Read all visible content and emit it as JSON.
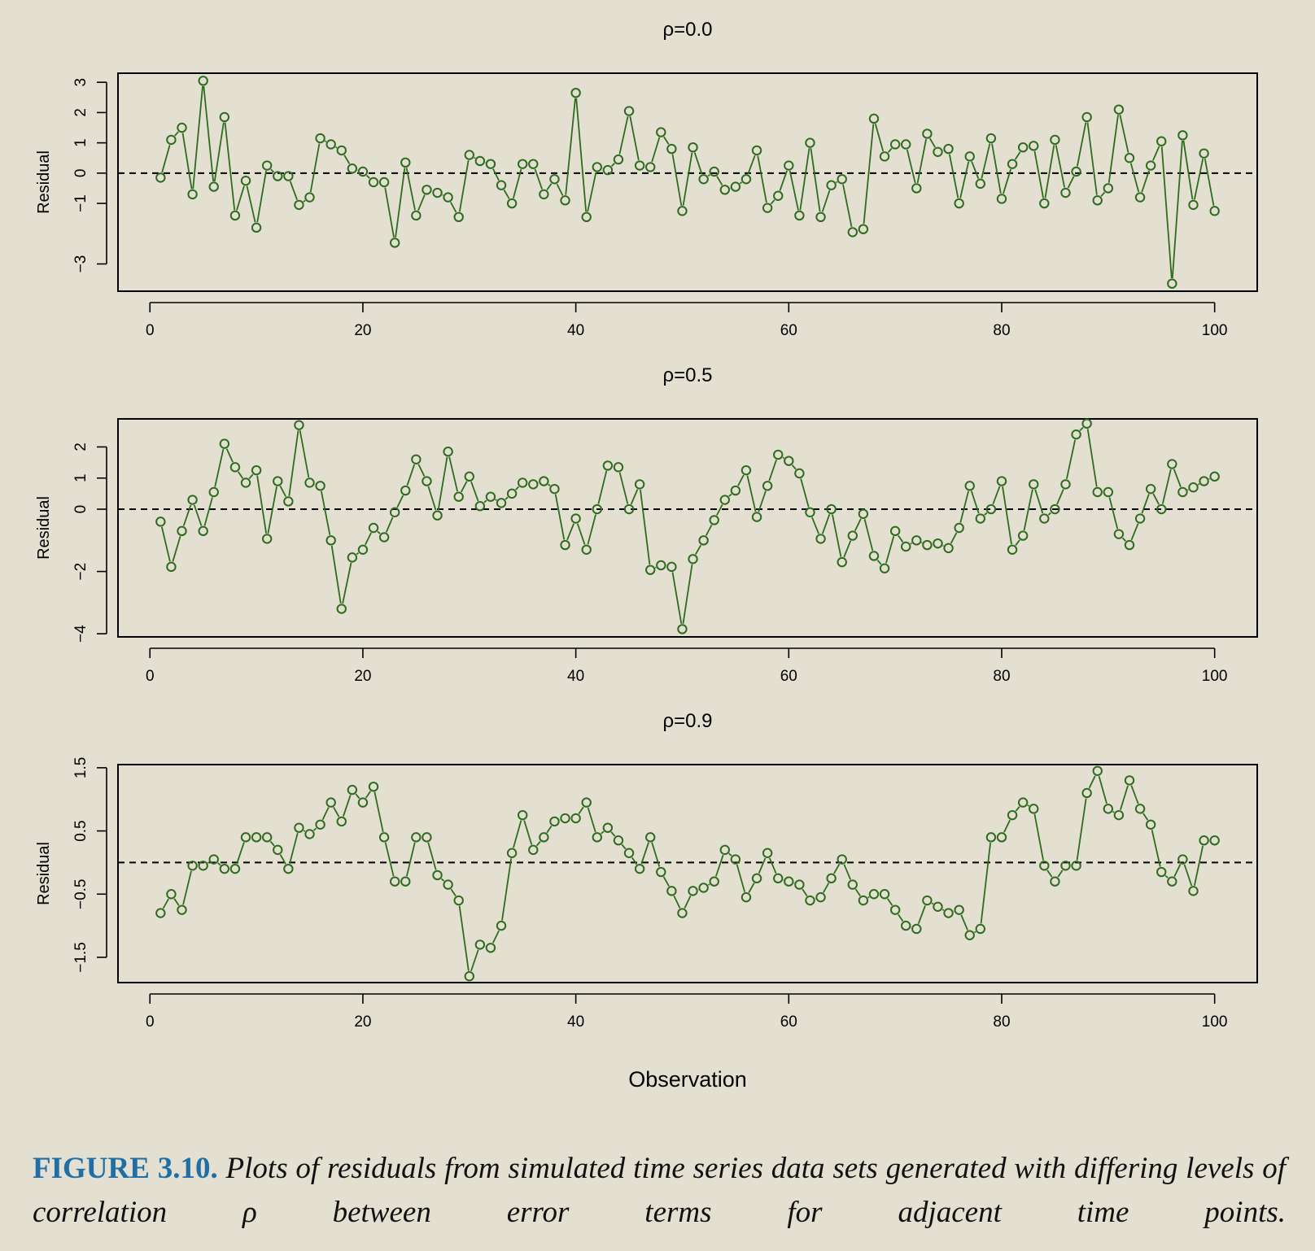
{
  "figure": {
    "xlabel": "Observation",
    "line_color": "#2f6b1f",
    "caption_label": "FIGURE 3.10.",
    "caption_text": "Plots of residuals from simulated time series data sets generated with differing levels of correlation ρ between error terms for adjacent time points.",
    "caption_label_color": "#1f6fa6"
  },
  "chart_data": [
    {
      "type": "line",
      "title": "ρ=0.0",
      "xlabel": "",
      "ylabel": "Residual",
      "xlim": [
        -3,
        104
      ],
      "ylim": [
        -3.9,
        3.3
      ],
      "xticks": [
        0,
        20,
        40,
        60,
        80,
        100
      ],
      "yticks": [
        -3,
        -1,
        0,
        1,
        2,
        3
      ],
      "yticklabels": [
        "−3",
        "−1",
        "0",
        "1",
        "2",
        "3"
      ],
      "hline": 0,
      "x": [
        1,
        2,
        3,
        4,
        5,
        6,
        7,
        8,
        9,
        10,
        11,
        12,
        13,
        14,
        15,
        16,
        17,
        18,
        19,
        20,
        21,
        22,
        23,
        24,
        25,
        26,
        27,
        28,
        29,
        30,
        31,
        32,
        33,
        34,
        35,
        36,
        37,
        38,
        39,
        40,
        41,
        42,
        43,
        44,
        45,
        46,
        47,
        48,
        49,
        50,
        51,
        52,
        53,
        54,
        55,
        56,
        57,
        58,
        59,
        60,
        61,
        62,
        63,
        64,
        65,
        66,
        67,
        68,
        69,
        70,
        71,
        72,
        73,
        74,
        75,
        76,
        77,
        78,
        79,
        80,
        81,
        82,
        83,
        84,
        85,
        86,
        87,
        88,
        89,
        90,
        91,
        92,
        93,
        94,
        95,
        96,
        97,
        98,
        99,
        100
      ],
      "series": [
        {
          "values": [
            -0.15,
            1.1,
            1.5,
            -0.7,
            3.05,
            -0.45,
            1.85,
            -1.4,
            -0.25,
            -1.8,
            0.25,
            -0.1,
            -0.1,
            -1.05,
            -0.8,
            1.15,
            0.95,
            0.75,
            0.15,
            0.05,
            -0.3,
            -0.3,
            -2.3,
            0.35,
            -1.4,
            -0.55,
            -0.65,
            -0.8,
            -1.45,
            0.6,
            0.4,
            0.3,
            -0.4,
            -1.0,
            0.3,
            0.3,
            -0.7,
            -0.2,
            -0.9,
            2.65,
            -1.45,
            0.2,
            0.1,
            0.45,
            2.05,
            0.25,
            0.2,
            1.35,
            0.8,
            -1.25,
            0.85,
            -0.2,
            0.05,
            -0.55,
            -0.45,
            -0.2,
            0.75,
            -1.15,
            -0.75,
            0.25,
            -1.4,
            1.0,
            -1.45,
            -0.4,
            -0.2,
            -1.95,
            -1.85,
            1.8,
            0.55,
            0.95,
            0.95,
            -0.5,
            1.3,
            0.7,
            0.8,
            -1.0,
            0.55,
            -0.35,
            1.15,
            -0.85,
            0.3,
            0.85,
            0.9,
            -1.0,
            1.1,
            -0.65,
            0.05,
            1.85,
            -0.9,
            -0.5,
            2.1,
            0.5,
            -0.8,
            0.25,
            1.05,
            -3.65,
            1.25,
            -1.05,
            0.65,
            -1.25
          ]
        }
      ]
    },
    {
      "type": "line",
      "title": "ρ=0.5",
      "xlabel": "",
      "ylabel": "Residual",
      "xlim": [
        -3,
        104
      ],
      "ylim": [
        -4.1,
        2.9
      ],
      "xticks": [
        0,
        20,
        40,
        60,
        80,
        100
      ],
      "yticks": [
        -4,
        -2,
        0,
        1,
        2
      ],
      "yticklabels": [
        "−4",
        "−2",
        "0",
        "1",
        "2"
      ],
      "hline": 0,
      "x": [
        1,
        2,
        3,
        4,
        5,
        6,
        7,
        8,
        9,
        10,
        11,
        12,
        13,
        14,
        15,
        16,
        17,
        18,
        19,
        20,
        21,
        22,
        23,
        24,
        25,
        26,
        27,
        28,
        29,
        30,
        31,
        32,
        33,
        34,
        35,
        36,
        37,
        38,
        39,
        40,
        41,
        42,
        43,
        44,
        45,
        46,
        47,
        48,
        49,
        50,
        51,
        52,
        53,
        54,
        55,
        56,
        57,
        58,
        59,
        60,
        61,
        62,
        63,
        64,
        65,
        66,
        67,
        68,
        69,
        70,
        71,
        72,
        73,
        74,
        75,
        76,
        77,
        78,
        79,
        80,
        81,
        82,
        83,
        84,
        85,
        86,
        87,
        88,
        89,
        90,
        91,
        92,
        93,
        94,
        95,
        96,
        97,
        98,
        99,
        100
      ],
      "series": [
        {
          "values": [
            -0.4,
            -1.85,
            -0.7,
            0.3,
            -0.7,
            0.55,
            2.1,
            1.35,
            0.85,
            1.25,
            -0.95,
            0.9,
            0.25,
            2.7,
            0.85,
            0.75,
            -1.0,
            -3.2,
            -1.55,
            -1.3,
            -0.6,
            -0.9,
            -0.1,
            0.6,
            1.6,
            0.9,
            -0.2,
            1.85,
            0.4,
            1.05,
            0.1,
            0.4,
            0.2,
            0.5,
            0.85,
            0.8,
            0.9,
            0.65,
            -1.15,
            -0.3,
            -1.3,
            0.0,
            1.4,
            1.35,
            0.0,
            0.8,
            -1.95,
            -1.8,
            -1.85,
            -3.85,
            -1.6,
            -1.0,
            -0.35,
            0.3,
            0.6,
            1.25,
            -0.25,
            0.75,
            1.75,
            1.55,
            1.15,
            -0.1,
            -0.95,
            0.0,
            -1.7,
            -0.85,
            -0.15,
            -1.5,
            -1.9,
            -0.7,
            -1.2,
            -1.0,
            -1.15,
            -1.1,
            -1.25,
            -0.6,
            0.75,
            -0.3,
            0.0,
            0.9,
            -1.3,
            -0.85,
            0.8,
            -0.3,
            0.0,
            0.8,
            2.4,
            2.75,
            0.55,
            0.55,
            -0.8,
            -1.15,
            -0.3,
            0.65,
            0.0,
            1.45,
            0.55,
            0.7,
            0.9,
            1.05
          ]
        }
      ]
    },
    {
      "type": "line",
      "title": "ρ=0.9",
      "xlabel": "Observation",
      "ylabel": "Residual",
      "xlim": [
        -3,
        104
      ],
      "ylim": [
        -1.9,
        1.55
      ],
      "xticks": [
        0,
        20,
        40,
        60,
        80,
        100
      ],
      "yticks": [
        -1.5,
        -0.5,
        0.5,
        1.5
      ],
      "yticklabels": [
        "−1.5",
        "−0.5",
        "0.5",
        "1.5"
      ],
      "hline": 0,
      "x": [
        1,
        2,
        3,
        4,
        5,
        6,
        7,
        8,
        9,
        10,
        11,
        12,
        13,
        14,
        15,
        16,
        17,
        18,
        19,
        20,
        21,
        22,
        23,
        24,
        25,
        26,
        27,
        28,
        29,
        30,
        31,
        32,
        33,
        34,
        35,
        36,
        37,
        38,
        39,
        40,
        41,
        42,
        43,
        44,
        45,
        46,
        47,
        48,
        49,
        50,
        51,
        52,
        53,
        54,
        55,
        56,
        57,
        58,
        59,
        60,
        61,
        62,
        63,
        64,
        65,
        66,
        67,
        68,
        69,
        70,
        71,
        72,
        73,
        74,
        75,
        76,
        77,
        78,
        79,
        80,
        81,
        82,
        83,
        84,
        85,
        86,
        87,
        88,
        89,
        90,
        91,
        92,
        93,
        94,
        95,
        96,
        97,
        98,
        99,
        100
      ],
      "series": [
        {
          "values": [
            -0.8,
            -0.5,
            -0.75,
            -0.05,
            -0.05,
            0.05,
            -0.1,
            -0.1,
            0.4,
            0.4,
            0.4,
            0.2,
            -0.1,
            0.55,
            0.45,
            0.6,
            0.95,
            0.65,
            1.15,
            0.95,
            1.2,
            0.4,
            -0.3,
            -0.3,
            0.4,
            0.4,
            -0.2,
            -0.35,
            -0.6,
            -1.8,
            -1.3,
            -1.35,
            -1.0,
            0.15,
            0.75,
            0.2,
            0.4,
            0.65,
            0.7,
            0.7,
            0.95,
            0.4,
            0.55,
            0.35,
            0.15,
            -0.1,
            0.4,
            -0.15,
            -0.45,
            -0.8,
            -0.45,
            -0.4,
            -0.3,
            0.2,
            0.05,
            -0.55,
            -0.25,
            0.15,
            -0.25,
            -0.3,
            -0.35,
            -0.6,
            -0.55,
            -0.25,
            0.05,
            -0.35,
            -0.6,
            -0.5,
            -0.5,
            -0.75,
            -1.0,
            -1.05,
            -0.6,
            -0.7,
            -0.8,
            -0.75,
            -1.15,
            -1.05,
            0.4,
            0.4,
            0.75,
            0.95,
            0.85,
            -0.05,
            -0.3,
            -0.05,
            -0.05,
            1.1,
            1.45,
            0.85,
            0.75,
            1.3,
            0.85,
            0.6,
            -0.15,
            -0.3,
            0.05,
            -0.45,
            0.35,
            0.35
          ]
        }
      ]
    }
  ]
}
